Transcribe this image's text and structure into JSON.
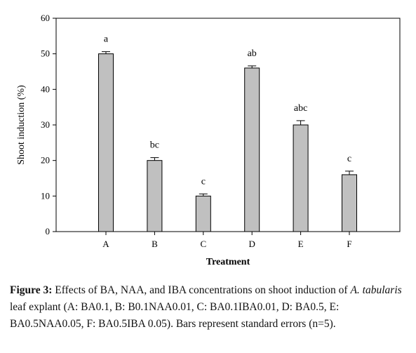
{
  "chart_data": {
    "type": "bar",
    "categories": [
      "A",
      "B",
      "C",
      "D",
      "E",
      "F"
    ],
    "values": [
      50,
      20,
      10,
      46,
      30,
      16
    ],
    "errors": [
      0.6,
      0.8,
      0.6,
      0.6,
      1.2,
      1.0
    ],
    "significance": [
      "a",
      "bc",
      "c",
      "ab",
      "abc",
      "c"
    ],
    "xlabel": "Treatment",
    "ylabel": "Shoot induction (%)",
    "ylim": [
      0,
      60
    ],
    "yticks": [
      0,
      10,
      20,
      30,
      40,
      50,
      60
    ],
    "bar_color": "#c0c0c0",
    "grid": false
  },
  "caption": {
    "label": "Figure 3:",
    "text_before": " Effects of BA, NAA, and IBA concentrations on shoot induction of ",
    "italic": "A. tabularis",
    "text_after": " leaf explant (A: BA0.1, B: B0.1NAA0.01, C: BA0.1IBA0.01, D: BA0.5, E: BA0.5NAA0.05, F: BA0.5IBA 0.05). Bars represent standard errors (n=5)."
  }
}
